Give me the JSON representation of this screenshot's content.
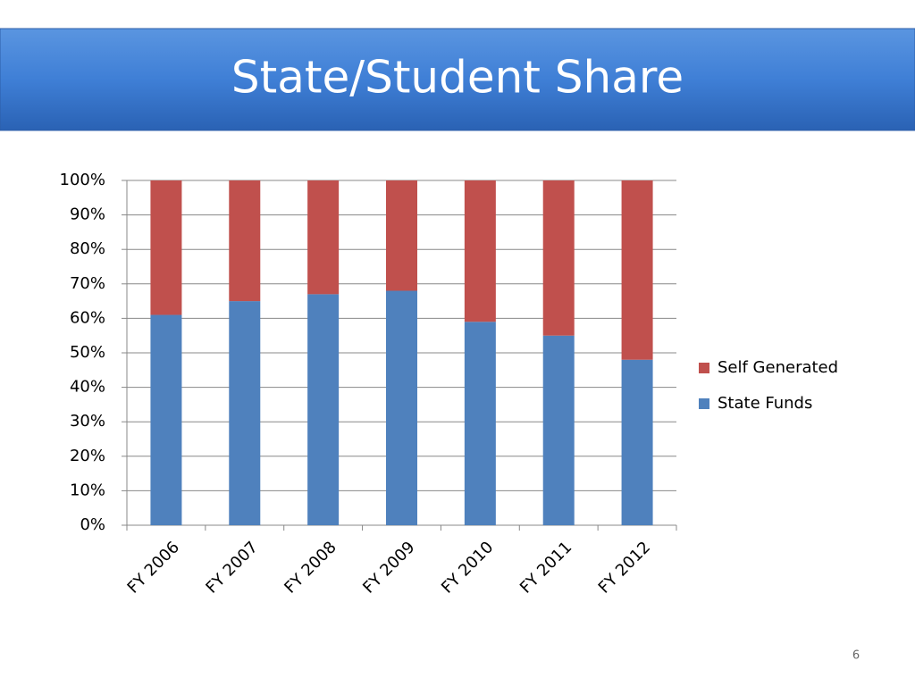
{
  "chart_data": {
    "type": "stacked_bar",
    "title": "State/Student Share",
    "categories": [
      "FY 2006",
      "FY 2007",
      "FY 2008",
      "FY 2009",
      "FY 2010",
      "FY 2011",
      "FY 2012"
    ],
    "series": [
      {
        "name": "State Funds",
        "color": "#4f81bd",
        "values": [
          61,
          65,
          67,
          68,
          59,
          55,
          48
        ]
      },
      {
        "name": "Self Generated",
        "color": "#c0504d",
        "values": [
          39,
          35,
          33,
          32,
          41,
          45,
          52
        ]
      }
    ],
    "ylim": [
      0,
      100
    ],
    "yticks": [
      {
        "value": 0,
        "label": "0%"
      },
      {
        "value": 10,
        "label": "10%"
      },
      {
        "value": 20,
        "label": "20%"
      },
      {
        "value": 30,
        "label": "30%"
      },
      {
        "value": 40,
        "label": "40%"
      },
      {
        "value": 50,
        "label": "50%"
      },
      {
        "value": 60,
        "label": "60%"
      },
      {
        "value": 70,
        "label": "70%"
      },
      {
        "value": 80,
        "label": "80%"
      },
      {
        "value": 90,
        "label": "90%"
      },
      {
        "value": 100,
        "label": "100%"
      }
    ],
    "grid": true,
    "legend": "right",
    "page_number": "6"
  }
}
